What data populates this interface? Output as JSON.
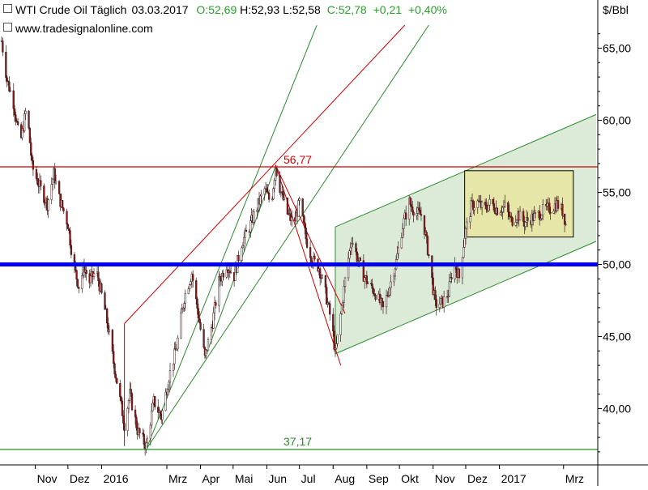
{
  "header": {
    "symbol": "WTI Crude Oil Täglich",
    "date": "03.03.2017",
    "open": "O:52,69",
    "high": "H:52,93",
    "low": "L:52,58",
    "close": "C:52,78",
    "change": "+0,21",
    "change_pct": "+0,40%",
    "website": "www.tradesignalonline.com"
  },
  "colors": {
    "up_text": "#2ba02b",
    "support_line": "#0000ee",
    "resistance_line": "#cc0000",
    "trend_green": "#2e8b2e",
    "channel_fill": "#d9ead6",
    "box_fill": "#e6e6a8",
    "candle_up": "#ffffff",
    "candle_down": "#8b1a1a"
  },
  "chart_data": {
    "type": "candlestick",
    "ylabel": "$/Bbl",
    "ylim": [
      36,
      67
    ],
    "y_ticks": [
      "65,00",
      "60,00",
      "55,00",
      "50,00",
      "45,00",
      "40,00"
    ],
    "y_tick_values": [
      65,
      60,
      55,
      50,
      45,
      40
    ],
    "x_ticks": [
      "Nov",
      "Dez",
      "2016",
      "Mrz",
      "Apr",
      "Mai",
      "Jun",
      "Jul",
      "Aug",
      "Sep",
      "Okt",
      "Nov",
      "Dez",
      "2017",
      "Mrz"
    ],
    "x_tick_dates": [
      "2015-11-01",
      "2015-12-01",
      "2016-01-01",
      "2016-03-01",
      "2016-04-01",
      "2016-05-01",
      "2016-06-01",
      "2016-07-01",
      "2016-08-01",
      "2016-09-01",
      "2016-10-01",
      "2016-11-01",
      "2016-12-01",
      "2017-01-01",
      "2017-03-01"
    ],
    "levels": [
      {
        "label": "56,77",
        "value": 56.77,
        "color": "#cc0000"
      },
      {
        "label": "37,17",
        "value": 37.17,
        "color": "#2e8b2e"
      },
      {
        "label": "",
        "value": 50.0,
        "color": "#0000ee"
      }
    ],
    "price_path": [
      [
        "2015-10-01",
        65.5
      ],
      [
        "2015-10-06",
        62.8
      ],
      [
        "2015-10-12",
        61.2
      ],
      [
        "2015-10-18",
        58.3
      ],
      [
        "2015-10-24",
        61.0
      ],
      [
        "2015-10-29",
        56.8
      ],
      [
        "2015-11-05",
        55.4
      ],
      [
        "2015-11-12",
        54.2
      ],
      [
        "2015-11-18",
        56.3
      ],
      [
        "2015-11-23",
        54.6
      ],
      [
        "2015-12-01",
        52.8
      ],
      [
        "2015-12-06",
        50.0
      ],
      [
        "2015-12-11",
        48.5
      ],
      [
        "2015-12-16",
        49.8
      ],
      [
        "2015-12-21",
        48.8
      ],
      [
        "2015-12-27",
        49.6
      ],
      [
        "2016-01-05",
        46.5
      ],
      [
        "2016-01-12",
        43.2
      ],
      [
        "2016-01-18",
        40.6
      ],
      [
        "2016-01-22",
        38.9
      ],
      [
        "2016-01-27",
        41.0
      ],
      [
        "2016-02-03",
        38.5
      ],
      [
        "2016-02-11",
        37.4
      ],
      [
        "2016-02-18",
        40.5
      ],
      [
        "2016-02-25",
        39.4
      ],
      [
        "2016-03-03",
        42.2
      ],
      [
        "2016-03-10",
        44.3
      ],
      [
        "2016-03-17",
        47.7
      ],
      [
        "2016-03-24",
        49.4
      ],
      [
        "2016-03-30",
        46.5
      ],
      [
        "2016-04-05",
        43.5
      ],
      [
        "2016-04-12",
        46.0
      ],
      [
        "2016-04-18",
        48.8
      ],
      [
        "2016-04-25",
        50.0
      ],
      [
        "2016-05-02",
        49.2
      ],
      [
        "2016-05-09",
        51.5
      ],
      [
        "2016-05-16",
        52.6
      ],
      [
        "2016-05-23",
        54.0
      ],
      [
        "2016-05-30",
        55.2
      ],
      [
        "2016-06-05",
        54.2
      ],
      [
        "2016-06-09",
        56.8
      ],
      [
        "2016-06-14",
        55.0
      ],
      [
        "2016-06-20",
        53.5
      ],
      [
        "2016-06-26",
        52.8
      ],
      [
        "2016-07-01",
        54.3
      ],
      [
        "2016-07-07",
        51.8
      ],
      [
        "2016-07-13",
        50.3
      ],
      [
        "2016-07-19",
        49.8
      ],
      [
        "2016-07-25",
        48.0
      ],
      [
        "2016-07-31",
        45.8
      ],
      [
        "2016-08-03",
        43.8
      ],
      [
        "2016-08-08",
        46.5
      ],
      [
        "2016-08-13",
        49.5
      ],
      [
        "2016-08-18",
        51.8
      ],
      [
        "2016-08-23",
        50.5
      ],
      [
        "2016-08-28",
        49.4
      ],
      [
        "2016-09-02",
        48.7
      ],
      [
        "2016-09-09",
        48.0
      ],
      [
        "2016-09-16",
        46.9
      ],
      [
        "2016-09-22",
        48.5
      ],
      [
        "2016-09-28",
        50.2
      ],
      [
        "2016-10-04",
        52.7
      ],
      [
        "2016-10-10",
        54.3
      ],
      [
        "2016-10-16",
        53.6
      ],
      [
        "2016-10-22",
        53.4
      ],
      [
        "2016-10-28",
        50.6
      ],
      [
        "2016-11-03",
        47.2
      ],
      [
        "2016-11-10",
        47.4
      ],
      [
        "2016-11-15",
        48.0
      ],
      [
        "2016-11-20",
        50.2
      ],
      [
        "2016-11-25",
        49.1
      ],
      [
        "2016-11-30",
        52.0
      ],
      [
        "2016-12-06",
        54.0
      ],
      [
        "2016-12-12",
        54.3
      ],
      [
        "2016-12-18",
        53.8
      ],
      [
        "2016-12-24",
        54.3
      ],
      [
        "2016-12-30",
        53.8
      ],
      [
        "2017-01-06",
        54.0
      ],
      [
        "2017-01-12",
        53.0
      ],
      [
        "2017-01-18",
        53.5
      ],
      [
        "2017-01-24",
        52.9
      ],
      [
        "2017-01-30",
        53.2
      ],
      [
        "2017-02-05",
        53.4
      ],
      [
        "2017-02-11",
        53.8
      ],
      [
        "2017-02-17",
        53.9
      ],
      [
        "2017-02-23",
        54.2
      ],
      [
        "2017-03-01",
        53.6
      ],
      [
        "2017-03-03",
        52.78
      ]
    ]
  }
}
